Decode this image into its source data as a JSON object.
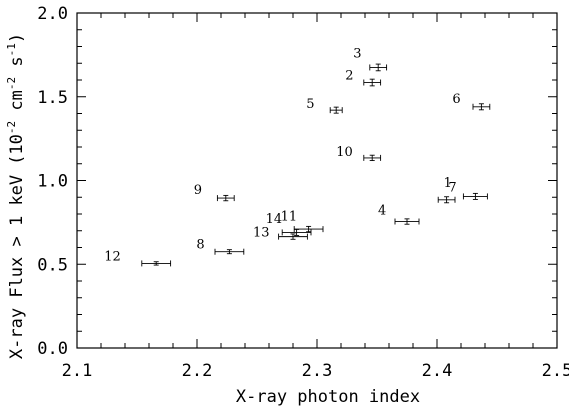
{
  "chart_data": {
    "type": "scatter",
    "xlabel": "X-ray photon index",
    "ylabel_main": "X-ray Flux > 1 keV",
    "ylabel_unit_open": "(10",
    "ylabel_exp1": "-2",
    "ylabel_unit_mid": " cm",
    "ylabel_exp2": "-2",
    "ylabel_unit_s": " s",
    "ylabel_exp3": "-1",
    "ylabel_unit_close": ")",
    "xlim": [
      2.1,
      2.5
    ],
    "ylim": [
      0.0,
      2.0
    ],
    "x_ticks": [
      2.1,
      2.2,
      2.3,
      2.4,
      2.5
    ],
    "x_tick_labels": [
      "2.1",
      "2.2",
      "2.3",
      "2.4",
      "2.5"
    ],
    "y_ticks": [
      0.0,
      0.5,
      1.0,
      1.5,
      2.0
    ],
    "y_tick_labels": [
      "0.0",
      "0.5",
      "1.0",
      "1.5",
      "2.0"
    ],
    "grid": false,
    "points": [
      {
        "label": "1",
        "x": 2.408,
        "y": 0.885,
        "xerr": 0.007,
        "yerr": 0.018
      },
      {
        "label": "2",
        "x": 2.346,
        "y": 1.585,
        "xerr": 0.007,
        "yerr": 0.02
      },
      {
        "label": "3",
        "x": 2.351,
        "y": 1.675,
        "xerr": 0.007,
        "yerr": 0.02
      },
      {
        "label": "4",
        "x": 2.375,
        "y": 0.755,
        "xerr": 0.01,
        "yerr": 0.016
      },
      {
        "label": "5",
        "x": 2.316,
        "y": 1.42,
        "xerr": 0.005,
        "yerr": 0.018
      },
      {
        "label": "6",
        "x": 2.437,
        "y": 1.44,
        "xerr": 0.007,
        "yerr": 0.018
      },
      {
        "label": "7",
        "x": 2.432,
        "y": 0.905,
        "xerr": 0.01,
        "yerr": 0.018
      },
      {
        "label": "8",
        "x": 2.227,
        "y": 0.575,
        "xerr": 0.012,
        "yerr": 0.012
      },
      {
        "label": "9",
        "x": 2.224,
        "y": 0.895,
        "xerr": 0.007,
        "yerr": 0.016
      },
      {
        "label": "10",
        "x": 2.346,
        "y": 1.135,
        "xerr": 0.007,
        "yerr": 0.016
      },
      {
        "label": "11",
        "x": 2.283,
        "y": 0.69,
        "xerr": 0.012,
        "yerr": 0.018
      },
      {
        "label": "12",
        "x": 2.166,
        "y": 0.505,
        "xerr": 0.012,
        "yerr": 0.01
      },
      {
        "label": "13",
        "x": 2.28,
        "y": 0.665,
        "xerr": 0.012,
        "yerr": 0.016
      },
      {
        "label": "14",
        "x": 2.293,
        "y": 0.71,
        "xerr": 0.012,
        "yerr": 0.016
      }
    ]
  }
}
